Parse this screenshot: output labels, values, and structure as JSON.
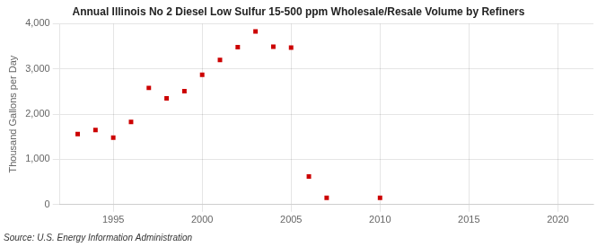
{
  "chart_data": {
    "type": "scatter",
    "title": "Annual Illinois No 2 Diesel Low Sulfur 15-500 ppm Wholesale/Resale Volume by Refiners",
    "ylabel": "Thousand Gallons per Day",
    "source": "Source: U.S. Energy Information Administration",
    "x": [
      1993,
      1994,
      1995,
      1996,
      1997,
      1998,
      1999,
      2000,
      2001,
      2002,
      2003,
      2004,
      2005,
      2006,
      2007,
      2010
    ],
    "values": [
      1560,
      1650,
      1480,
      1830,
      2580,
      2350,
      2510,
      2870,
      3200,
      3480,
      3830,
      3490,
      3470,
      620,
      150,
      150
    ],
    "color": "#cc0000",
    "marker": "square",
    "xlim": [
      1992,
      2022
    ],
    "xticks": [
      1995,
      2000,
      2005,
      2010,
      2015,
      2020
    ],
    "ylim": [
      0,
      4000
    ],
    "yticks": [
      0,
      {
        "value": 1000,
        "label": "1,000"
      },
      {
        "value": 2000,
        "label": "2,000"
      },
      {
        "value": 3000,
        "label": "3,000"
      },
      {
        "value": 4000,
        "label": "4,000"
      }
    ],
    "grid": true
  }
}
